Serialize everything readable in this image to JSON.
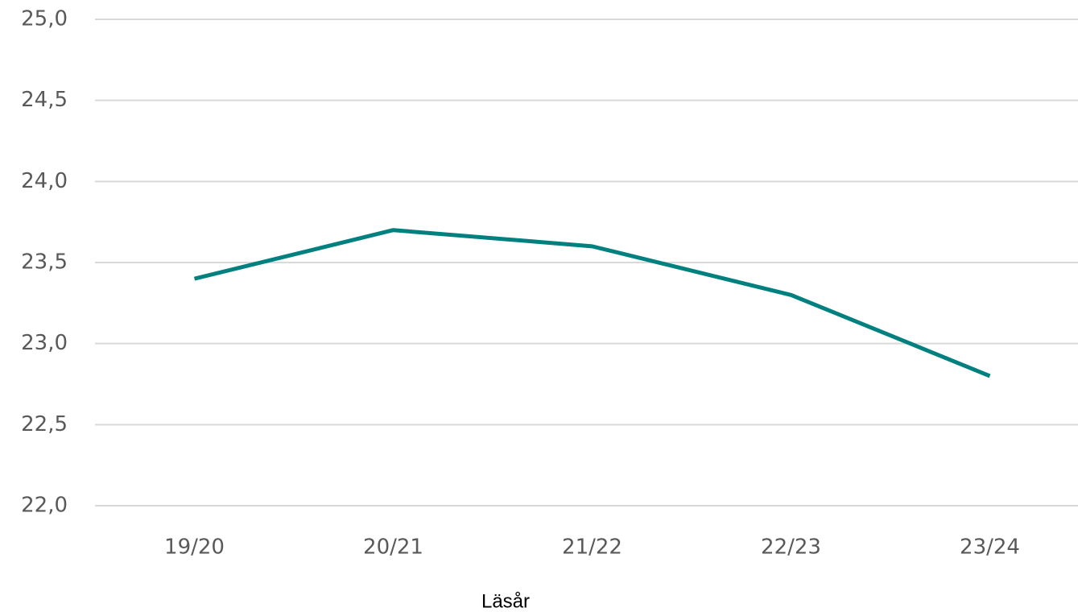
{
  "chart_data": {
    "type": "line",
    "x_label": "Läsår",
    "categories": [
      "19/20",
      "20/21",
      "21/22",
      "22/23",
      "23/24"
    ],
    "values": [
      23.4,
      23.7,
      23.6,
      23.3,
      22.8
    ],
    "color": "#00807f",
    "ylim": [
      22,
      25
    ],
    "yticks": [
      {
        "value": 22,
        "label": "22,0"
      },
      {
        "value": 22.5,
        "label": "22,5"
      },
      {
        "value": 23,
        "label": "23,0"
      },
      {
        "value": 23.5,
        "label": "23,5"
      },
      {
        "value": 24,
        "label": "24,0"
      },
      {
        "value": 24.5,
        "label": "24,5"
      },
      {
        "value": 25,
        "label": "25,0"
      }
    ],
    "grid": true
  }
}
